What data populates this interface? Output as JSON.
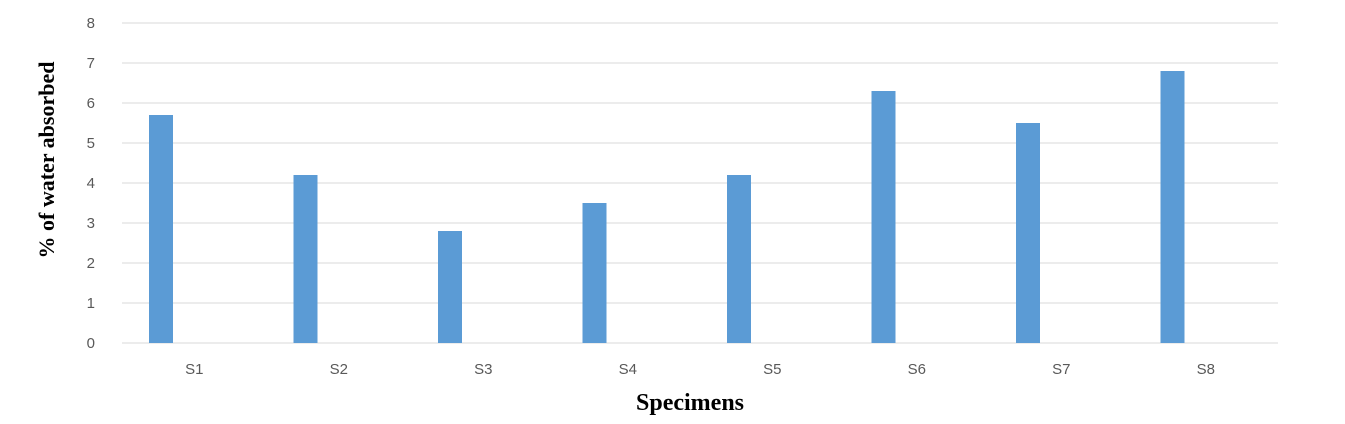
{
  "chart_data": {
    "type": "bar",
    "title": "",
    "xlabel": "Specimens",
    "ylabel": "% of water absorbed",
    "categories": [
      "S1",
      "S2",
      "S3",
      "S4",
      "S5",
      "S6",
      "S7",
      "S8"
    ],
    "values": [
      5.7,
      4.2,
      2.8,
      3.5,
      4.2,
      6.3,
      5.5,
      6.8
    ],
    "ylim": [
      0,
      8
    ],
    "yticks": [
      "0",
      "1",
      "2",
      "3",
      "4",
      "5",
      "6",
      "7",
      "8"
    ],
    "grid": true,
    "legend": "none",
    "colors": {
      "bar": "#5b9bd5",
      "grid": "#d9d9d9",
      "tick_text": "#595959"
    }
  }
}
